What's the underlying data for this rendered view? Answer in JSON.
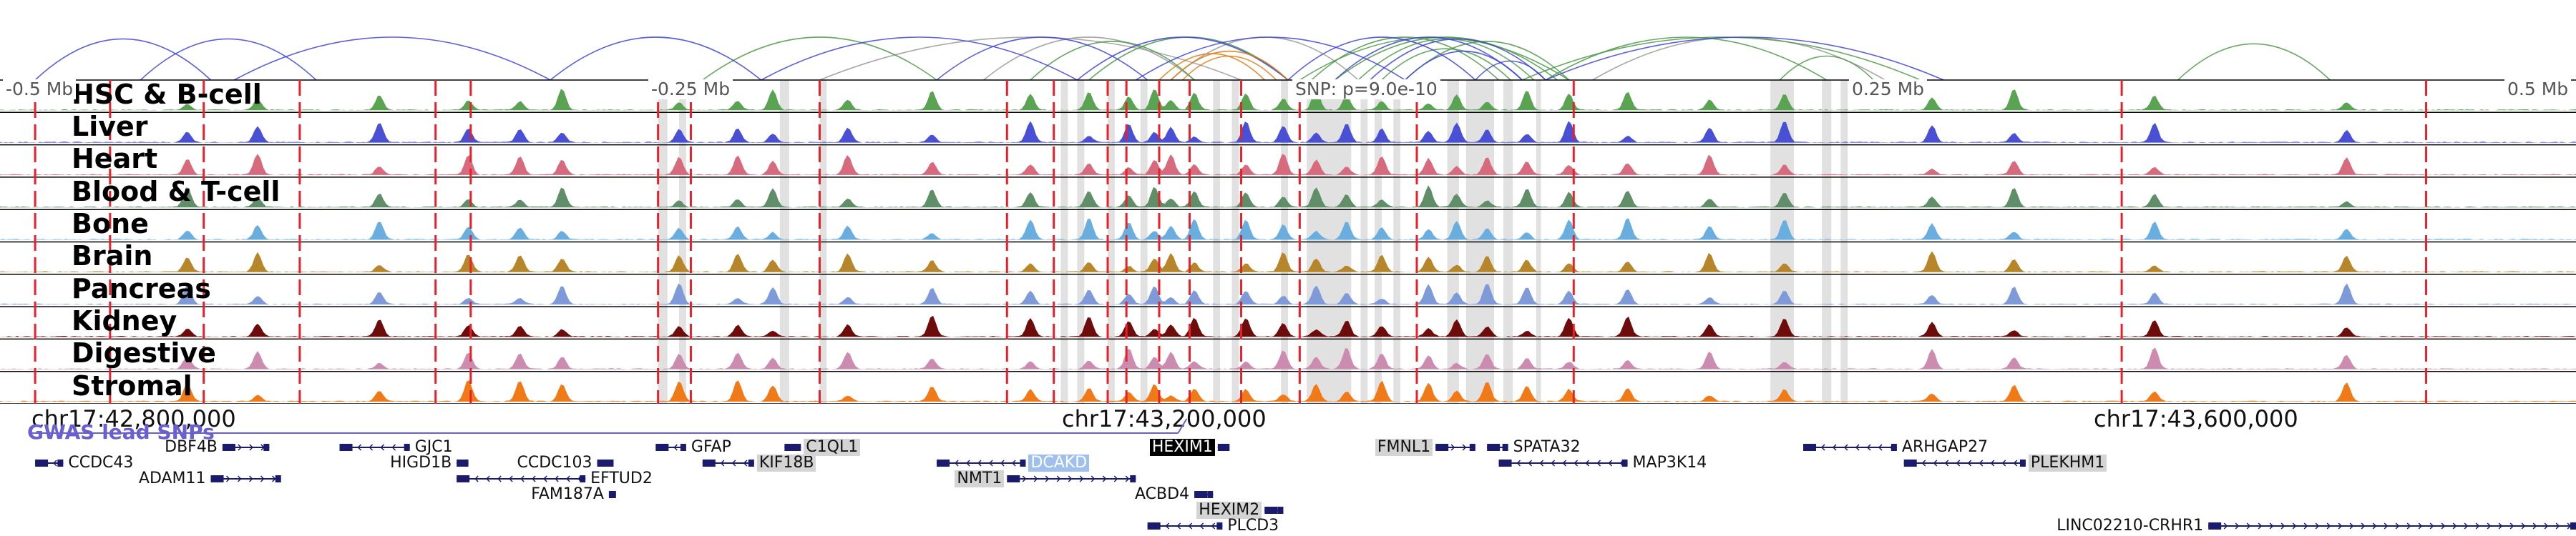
{
  "region": {
    "start": 42700000,
    "end": 43800000
  },
  "snp": {
    "position": 43200000,
    "label": "SNP: p=9.0e-10"
  },
  "offset_ticks": [
    {
      "pos": 42700000,
      "label": "-0.5 Mb"
    },
    {
      "pos": 42950000,
      "label": "-0.25 Mb"
    },
    {
      "pos": 43450000,
      "label": "0.25 Mb"
    },
    {
      "pos": 43700000,
      "label": "0.5 Mb"
    }
  ],
  "coordinate_ticks": [
    {
      "pos": 42800000,
      "label": "chr17:42,800,000"
    },
    {
      "pos": 43200000,
      "label": "chr17:43,200,000"
    },
    {
      "pos": 43600000,
      "label": "chr17:43,600,000"
    }
  ],
  "gwas_label": "GWAS lead SNPs",
  "tracks": [
    {
      "name": "HSC & B-cell",
      "color": "#5aa352"
    },
    {
      "name": "Liver",
      "color": "#4a50d4"
    },
    {
      "name": "Heart",
      "color": "#d86a7e"
    },
    {
      "name": "Blood & T-cell",
      "color": "#5f8e68"
    },
    {
      "name": "Bone",
      "color": "#6aaee0"
    },
    {
      "name": "Brain",
      "color": "#b8862a"
    },
    {
      "name": "Pancreas",
      "color": "#7e9ad8"
    },
    {
      "name": "Kidney",
      "color": "#6e0b0b"
    },
    {
      "name": "Digestive",
      "color": "#cc8cb0"
    },
    {
      "name": "Stromal",
      "color": "#f07a18"
    }
  ],
  "red_markers": [
    42715000,
    42747000,
    42787000,
    42828000,
    42886000,
    42901000,
    42981000,
    42995000,
    43050000,
    43130000,
    43150000,
    43173000,
    43181000,
    43195000,
    43208000,
    43230000,
    43255000,
    43305000,
    43372000,
    43606000,
    43736000
  ],
  "gray_bands": [
    [
      42981000,
      42985000
    ],
    [
      42990000,
      42993000
    ],
    [
      43033000,
      43037000
    ],
    [
      43050000,
      43053000
    ],
    [
      43153000,
      43156000
    ],
    [
      43160000,
      43163000
    ],
    [
      43173000,
      43176000
    ],
    [
      43187000,
      43190000
    ],
    [
      43218000,
      43221000
    ],
    [
      43226000,
      43229000
    ],
    [
      43247000,
      43250000
    ],
    [
      43258000,
      43277000
    ],
    [
      43281000,
      43284000
    ],
    [
      43287000,
      43290000
    ],
    [
      43295000,
      43298000
    ],
    [
      43318000,
      43323000
    ],
    [
      43326000,
      43338000
    ],
    [
      43342000,
      43346000
    ],
    [
      43356000,
      43358000
    ],
    [
      43456000,
      43466000
    ],
    [
      43478000,
      43482000
    ],
    [
      43486000,
      43489000
    ]
  ],
  "peak_centers": [
    42780000,
    42810000,
    42862000,
    42900000,
    42922000,
    42940000,
    42990000,
    43015000,
    43030000,
    43062000,
    43098000,
    43140000,
    43165000,
    43182000,
    43193000,
    43200000,
    43210000,
    43232000,
    43248000,
    43262000,
    43275000,
    43290000,
    43310000,
    43322000,
    43335000,
    43352000,
    43370000,
    43395000,
    43430000,
    43462000,
    43525000,
    43560000,
    43620000,
    43702000
  ],
  "arcs_blue": [
    [
      42715000,
      42790000
    ],
    [
      42760000,
      42835000
    ],
    [
      42800000,
      42935000
    ],
    [
      42935000,
      43025000
    ],
    [
      43025000,
      43160000
    ],
    [
      43100000,
      43190000
    ],
    [
      43160000,
      43250000
    ],
    [
      43185000,
      43300000
    ],
    [
      43250000,
      43330000
    ],
    [
      43270000,
      43350000
    ],
    [
      43300000,
      43350000
    ],
    [
      43285000,
      43360000
    ],
    [
      43330000,
      43360000
    ],
    [
      43360000,
      43530000
    ]
  ],
  "arcs_green": [
    [
      43000000,
      43100000
    ],
    [
      43140000,
      43210000
    ],
    [
      43165000,
      43250000
    ],
    [
      43255000,
      43370000
    ],
    [
      43260000,
      43340000
    ],
    [
      43270000,
      43365000
    ],
    [
      43280000,
      43355000
    ],
    [
      43300000,
      43370000
    ],
    [
      43290000,
      43345000
    ],
    [
      43360000,
      43480000
    ],
    [
      43350000,
      43520000
    ],
    [
      43460000,
      43500000
    ],
    [
      43630000,
      43695000
    ]
  ],
  "arcs_orange": [
    [
      43200000,
      43250000
    ],
    [
      43205000,
      43245000
    ],
    [
      43195000,
      43240000
    ]
  ],
  "arcs_gray": [
    [
      43120000,
      43210000
    ],
    [
      43050000,
      43230000
    ],
    [
      43380000,
      43505000
    ],
    [
      43200000,
      43280000
    ]
  ],
  "genes": [
    {
      "name": "DBF4B",
      "start": 42795000,
      "end": 42815000,
      "row": 0,
      "strand": "+",
      "label_side": "left",
      "highlight": ""
    },
    {
      "name": "CCDC43",
      "start": 42715000,
      "end": 42727000,
      "row": 1,
      "strand": "-",
      "label_side": "right",
      "highlight": ""
    },
    {
      "name": "ADAM11",
      "start": 42790000,
      "end": 42820000,
      "row": 2,
      "strand": "+",
      "label_side": "left",
      "highlight": ""
    },
    {
      "name": "GJC1",
      "start": 42845000,
      "end": 42875000,
      "row": 0,
      "strand": "-",
      "label_side": "right",
      "highlight": ""
    },
    {
      "name": "HIGD1B",
      "start": 42895000,
      "end": 42900000,
      "row": 1,
      "strand": "+",
      "label_side": "left",
      "highlight": ""
    },
    {
      "name": "EFTUD2",
      "start": 42895000,
      "end": 42950000,
      "row": 2,
      "strand": "-",
      "label_side": "right",
      "highlight": ""
    },
    {
      "name": "CCDC103",
      "start": 42955000,
      "end": 42962000,
      "row": 1,
      "strand": "+",
      "label_side": "left",
      "highlight": ""
    },
    {
      "name": "FAM187A",
      "start": 42960000,
      "end": 42963000,
      "row": 3,
      "strand": "+",
      "label_side": "left",
      "highlight": ""
    },
    {
      "name": "GFAP",
      "start": 42980000,
      "end": 42993000,
      "row": 0,
      "strand": "-",
      "label_side": "right",
      "highlight": ""
    },
    {
      "name": "KIF18B",
      "start": 43000000,
      "end": 43022000,
      "row": 1,
      "strand": "-",
      "label_side": "right",
      "highlight": "gray"
    },
    {
      "name": "C1QL1",
      "start": 43035000,
      "end": 43042000,
      "row": 0,
      "strand": "-",
      "label_side": "right",
      "highlight": "gray"
    },
    {
      "name": "DCAKD",
      "start": 43100000,
      "end": 43138000,
      "row": 1,
      "strand": "-",
      "label_side": "right",
      "highlight": "blue"
    },
    {
      "name": "NMT1",
      "start": 43130000,
      "end": 43185000,
      "row": 2,
      "strand": "+",
      "label_side": "left",
      "highlight": "gray"
    },
    {
      "name": "HEXIM1",
      "start": 43220000,
      "end": 43225000,
      "row": 0,
      "strand": "+",
      "label_side": "left",
      "highlight": "black"
    },
    {
      "name": "ACBD4",
      "start": 43210000,
      "end": 43218000,
      "row": 3,
      "strand": "+",
      "label_side": "left",
      "highlight": ""
    },
    {
      "name": "HEXIM2",
      "start": 43240000,
      "end": 43248000,
      "row": 4,
      "strand": "+",
      "label_side": "left",
      "highlight": "gray"
    },
    {
      "name": "PLCD3",
      "start": 43190000,
      "end": 43222000,
      "row": 5,
      "strand": "-",
      "label_side": "right",
      "highlight": ""
    },
    {
      "name": "FMNL1",
      "start": 43313000,
      "end": 43330000,
      "row": 0,
      "strand": "+",
      "label_side": "left",
      "highlight": "gray"
    },
    {
      "name": "SPATA32",
      "start": 43335000,
      "end": 43344000,
      "row": 0,
      "strand": "-",
      "label_side": "right",
      "highlight": ""
    },
    {
      "name": "MAP3K14",
      "start": 43340000,
      "end": 43395000,
      "row": 1,
      "strand": "-",
      "label_side": "right",
      "highlight": ""
    },
    {
      "name": "ARHGAP27",
      "start": 43470000,
      "end": 43510000,
      "row": 0,
      "strand": "-",
      "label_side": "right",
      "highlight": ""
    },
    {
      "name": "PLEKHM1",
      "start": 43513000,
      "end": 43565000,
      "row": 1,
      "strand": "-",
      "label_side": "right",
      "highlight": "gray"
    },
    {
      "name": "LINC02210-CRHR1",
      "start": 43643000,
      "end": 43800000,
      "row": 5,
      "strand": "+",
      "label_side": "left",
      "highlight": ""
    }
  ]
}
